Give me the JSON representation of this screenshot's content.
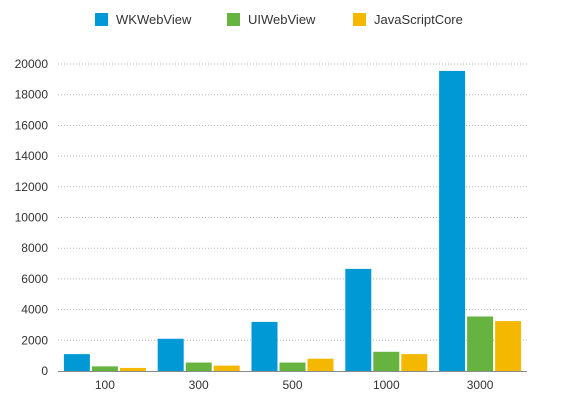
{
  "chart_data": {
    "type": "bar",
    "categories": [
      "100",
      "300",
      "500",
      "1000",
      "3000"
    ],
    "series": [
      {
        "name": "WKWebView",
        "color": "#0099d6",
        "values": [
          1100,
          2100,
          3200,
          6650,
          19550
        ]
      },
      {
        "name": "UIWebView",
        "color": "#66b33f",
        "values": [
          300,
          550,
          550,
          1250,
          3550
        ]
      },
      {
        "name": "JavaScriptCore",
        "color": "#f5b800",
        "values": [
          200,
          350,
          800,
          1100,
          3250
        ]
      }
    ],
    "yticks": [
      "0",
      "2000",
      "4000",
      "6000",
      "8000",
      "10000",
      "12000",
      "14000",
      "16000",
      "18000",
      "20000"
    ],
    "ylim": [
      0,
      20000
    ],
    "grid": true,
    "legend_position": "top-center"
  }
}
